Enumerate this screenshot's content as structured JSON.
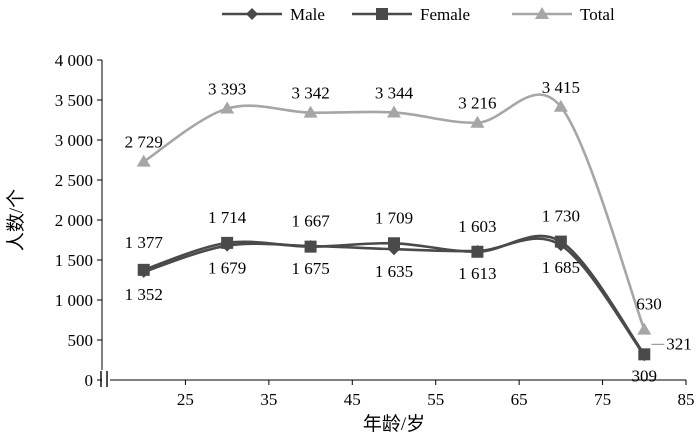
{
  "chart_data": {
    "type": "line",
    "title": "",
    "xlabel": "年龄/岁",
    "ylabel": "人数/个",
    "xlim": [
      15,
      85
    ],
    "ylim": [
      0,
      4000
    ],
    "x_ticks": [
      25,
      35,
      45,
      55,
      65,
      75,
      85
    ],
    "y_ticks": [
      0,
      500,
      1000,
      1500,
      2000,
      2500,
      3000,
      3500,
      4000
    ],
    "y_tick_labels": [
      "0",
      "500",
      "1 000",
      "1 500",
      "2 000",
      "2 500",
      "3 000",
      "3 500",
      "4 000"
    ],
    "x_axis_break": true,
    "smooth": true,
    "grid": false,
    "legend_position": "top",
    "x": [
      20,
      30,
      40,
      50,
      60,
      70,
      80
    ],
    "series": [
      {
        "name": "Male",
        "marker": "diamond",
        "color": "#4a4a4a",
        "values": [
          1352,
          1679,
          1675,
          1635,
          1613,
          1685,
          309
        ],
        "labels": [
          "1 352",
          "1 679",
          "1 675",
          "1 635",
          "1 613",
          "1 685",
          "309"
        ]
      },
      {
        "name": "Female",
        "marker": "square",
        "color": "#4a4a4a",
        "values": [
          1377,
          1714,
          1667,
          1709,
          1603,
          1730,
          321
        ],
        "labels": [
          "1 377",
          "1 714",
          "1 667",
          "1 709",
          "1 603",
          "1 730",
          "321"
        ]
      },
      {
        "name": "Total",
        "marker": "triangle",
        "color": "#a6a6a6",
        "values": [
          2729,
          3393,
          3342,
          3344,
          3216,
          3415,
          630
        ],
        "labels": [
          "2 729",
          "3 393",
          "3 342",
          "3 344",
          "3 216",
          "3 415",
          "630"
        ]
      }
    ]
  }
}
